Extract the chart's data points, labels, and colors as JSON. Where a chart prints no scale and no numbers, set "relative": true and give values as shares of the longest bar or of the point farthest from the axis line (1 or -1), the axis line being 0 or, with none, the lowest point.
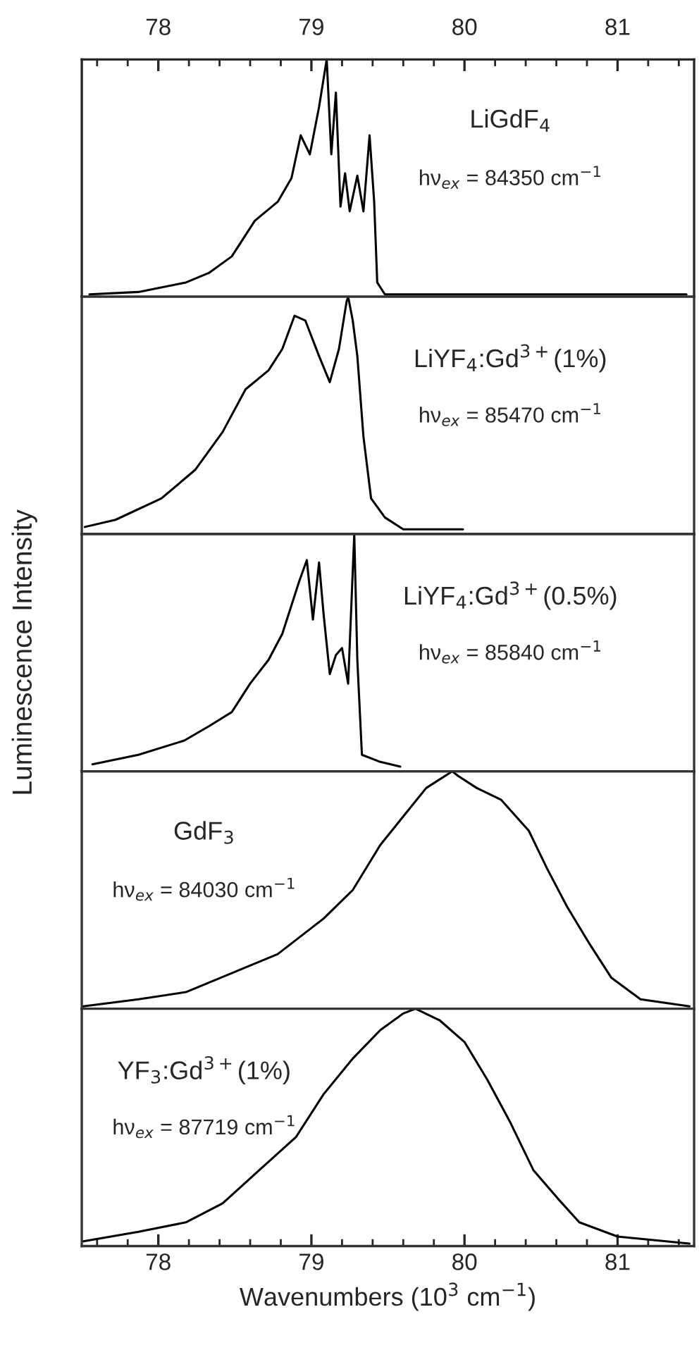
{
  "chart_data": [
    {
      "type": "line",
      "relative": true,
      "xlim": [
        77.5,
        81.5
      ],
      "x2lim": [
        77.5,
        81.5
      ],
      "tick_labels": "x",
      "x2ticks": [
        {
          "value": 77.6,
          "label": null
        },
        {
          "value": 77.8,
          "label": null
        },
        78,
        {
          "value": 78.2,
          "label": null
        },
        {
          "value": 78.4,
          "label": null
        },
        {
          "value": 78.6,
          "label": null
        },
        {
          "value": 78.8,
          "label": null
        },
        79,
        {
          "value": 79.2,
          "label": null
        },
        {
          "value": 79.4,
          "label": null
        },
        {
          "value": 79.6,
          "label": null
        },
        {
          "value": 79.8,
          "label": null
        },
        80,
        {
          "value": 80.2,
          "label": null
        },
        {
          "value": 80.4,
          "label": null
        },
        {
          "value": 80.6,
          "label": null
        },
        {
          "value": 80.8,
          "label": null
        },
        81,
        {
          "value": 81.2,
          "label": null
        },
        {
          "value": 81.4,
          "label": null
        }
      ],
      "annotations": [
        "LiGdF$_{4}$",
        "hν$_{ex}$ = 84350 cm$^{−1}$"
      ],
      "series": [
        {
          "color": "#000000",
          "x": [
            77.55,
            77.87,
            78.18,
            78.33,
            78.48,
            78.63,
            78.78,
            78.87,
            78.93,
            78.99,
            79.05,
            79.1,
            79.13,
            79.16,
            79.19,
            79.22,
            79.25,
            79.3,
            79.34,
            79.38,
            79.41,
            79.43,
            79.48,
            81.45
          ],
          "values": [
            0.01,
            0.02,
            0.06,
            0.1,
            0.17,
            0.32,
            0.4,
            0.5,
            0.68,
            0.6,
            0.8,
            1.0,
            0.6,
            0.86,
            0.38,
            0.52,
            0.36,
            0.51,
            0.36,
            0.68,
            0.4,
            0.06,
            0.01,
            0.01
          ]
        }
      ]
    },
    {
      "type": "line",
      "relative": true,
      "xlim": [
        77.5,
        81.5
      ],
      "tick_labels": false,
      "annotations": [
        "LiYF$_{4}$:Gd$^{3+}$(1%)",
        "hν$_{ex}$ = 85470 cm$^{−1}$"
      ],
      "series": [
        {
          "color": "#000000",
          "x": [
            77.52,
            77.72,
            78.02,
            78.24,
            78.42,
            78.57,
            78.72,
            78.81,
            78.89,
            78.96,
            79.05,
            79.12,
            79.18,
            79.23,
            79.24,
            79.27,
            79.3,
            79.34,
            79.39,
            79.48,
            79.6,
            79.99
          ],
          "values": [
            0.03,
            0.06,
            0.15,
            0.27,
            0.43,
            0.61,
            0.69,
            0.78,
            0.92,
            0.9,
            0.75,
            0.64,
            0.78,
            0.98,
            1.0,
            0.9,
            0.75,
            0.41,
            0.15,
            0.07,
            0.02,
            0.02
          ]
        }
      ]
    },
    {
      "type": "line",
      "relative": true,
      "xlim": [
        77.5,
        81.5
      ],
      "tick_labels": false,
      "ylabel": "Luminescence Intensity",
      "annotations": [
        "LiYF$_{4}$:Gd$^{3+}$(0.5%)",
        "hν$_{ex}$ = 85840 cm$^{−1}$"
      ],
      "series": [
        {
          "color": "#000000",
          "x": [
            77.57,
            77.87,
            78.17,
            78.33,
            78.48,
            78.6,
            78.72,
            78.81,
            78.87,
            78.92,
            78.97,
            79.01,
            79.05,
            79.08,
            79.12,
            79.16,
            79.2,
            79.24,
            79.28,
            79.3,
            79.33,
            79.45,
            79.58
          ],
          "values": [
            0.03,
            0.07,
            0.13,
            0.19,
            0.25,
            0.37,
            0.47,
            0.58,
            0.7,
            0.8,
            0.89,
            0.64,
            0.88,
            0.66,
            0.41,
            0.49,
            0.52,
            0.37,
            1.0,
            0.47,
            0.07,
            0.04,
            0.02
          ]
        }
      ]
    },
    {
      "type": "line",
      "relative": true,
      "xlim": [
        77.5,
        81.5
      ],
      "tick_labels": false,
      "annotations": [
        "GdF$_{3}$",
        "hν$_{ex}$ = 84030 cm$^{−1}$"
      ],
      "series": [
        {
          "color": "#000000",
          "x": [
            77.51,
            77.87,
            78.18,
            78.48,
            78.78,
            79.08,
            79.27,
            79.45,
            79.6,
            79.75,
            79.92,
            79.96,
            80.08,
            80.24,
            80.42,
            80.54,
            80.67,
            80.82,
            80.96,
            81.15,
            81.47
          ],
          "values": [
            0.01,
            0.04,
            0.07,
            0.15,
            0.23,
            0.38,
            0.5,
            0.69,
            0.81,
            0.93,
            1.0,
            0.98,
            0.93,
            0.88,
            0.75,
            0.59,
            0.43,
            0.27,
            0.13,
            0.04,
            0.01
          ]
        }
      ]
    },
    {
      "type": "line",
      "relative": true,
      "xlim": [
        77.5,
        81.5
      ],
      "tick_labels": "x",
      "xlabel": "Wavenumbers (10$^{3}$ cm$^{−1}$)",
      "xticks": [
        {
          "value": 77.6,
          "label": null
        },
        {
          "value": 77.8,
          "label": null
        },
        78,
        {
          "value": 78.2,
          "label": null
        },
        {
          "value": 78.4,
          "label": null
        },
        {
          "value": 78.6,
          "label": null
        },
        {
          "value": 78.8,
          "label": null
        },
        79,
        {
          "value": 79.2,
          "label": null
        },
        {
          "value": 79.4,
          "label": null
        },
        {
          "value": 79.6,
          "label": null
        },
        {
          "value": 79.8,
          "label": null
        },
        80,
        {
          "value": 80.2,
          "label": null
        },
        {
          "value": 80.4,
          "label": null
        },
        {
          "value": 80.6,
          "label": null
        },
        {
          "value": 80.8,
          "label": null
        },
        81,
        {
          "value": 81.2,
          "label": null
        },
        {
          "value": 81.4,
          "label": null
        }
      ],
      "annotations": [
        "YF$_{3}$:Gd$^{3+}$(1%)",
        "hν$_{ex}$ = 87719 cm$^{−1}$"
      ],
      "series": [
        {
          "color": "#000000",
          "x": [
            77.51,
            77.87,
            78.18,
            78.42,
            78.66,
            78.9,
            79.08,
            79.27,
            79.45,
            79.6,
            79.68,
            79.84,
            80.0,
            80.15,
            80.3,
            80.45,
            80.61,
            80.75,
            81.0,
            81.47
          ],
          "values": [
            0.02,
            0.06,
            0.1,
            0.18,
            0.32,
            0.46,
            0.64,
            0.79,
            0.91,
            0.98,
            1.0,
            0.95,
            0.86,
            0.7,
            0.52,
            0.32,
            0.2,
            0.1,
            0.04,
            0.01
          ]
        }
      ]
    }
  ]
}
